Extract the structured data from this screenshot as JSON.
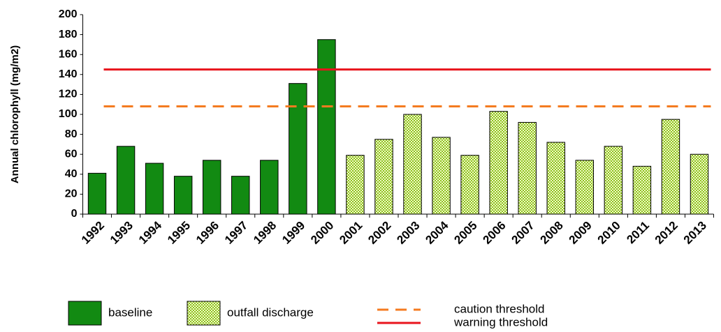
{
  "chart_data": {
    "type": "bar",
    "y_label": "Annual chlorophyll (mg/m2)",
    "categories": [
      "1992",
      "1993",
      "1994",
      "1995",
      "1996",
      "1997",
      "1998",
      "1999",
      "2000",
      "2001",
      "2002",
      "2003",
      "2004",
      "2005",
      "2006",
      "2007",
      "2008",
      "2009",
      "2010",
      "2011",
      "2012",
      "2013"
    ],
    "series": [
      {
        "name": "baseline",
        "color": "#128a12",
        "pattern": "solid",
        "values": [
          41,
          68,
          51,
          38,
          54,
          38,
          54,
          131,
          175,
          null,
          null,
          null,
          null,
          null,
          null,
          null,
          null,
          null,
          null,
          null,
          null,
          null
        ]
      },
      {
        "name": "outfall discharge",
        "color": "#8cc21e",
        "pattern": "checker",
        "values": [
          null,
          null,
          null,
          null,
          null,
          null,
          null,
          null,
          null,
          59,
          75,
          100,
          77,
          59,
          103,
          92,
          72,
          54,
          68,
          48,
          95,
          60
        ]
      }
    ],
    "thresholds": [
      {
        "name": "caution threshold",
        "color": "#f47b20",
        "style": "dashed",
        "value": 108
      },
      {
        "name": "warning threshold",
        "color": "#e8141c",
        "style": "solid",
        "value": 145
      }
    ],
    "ylim": [
      0,
      200
    ],
    "yticks": [
      0,
      20,
      40,
      60,
      80,
      100,
      120,
      140,
      160,
      180,
      200
    ],
    "grid": false
  }
}
